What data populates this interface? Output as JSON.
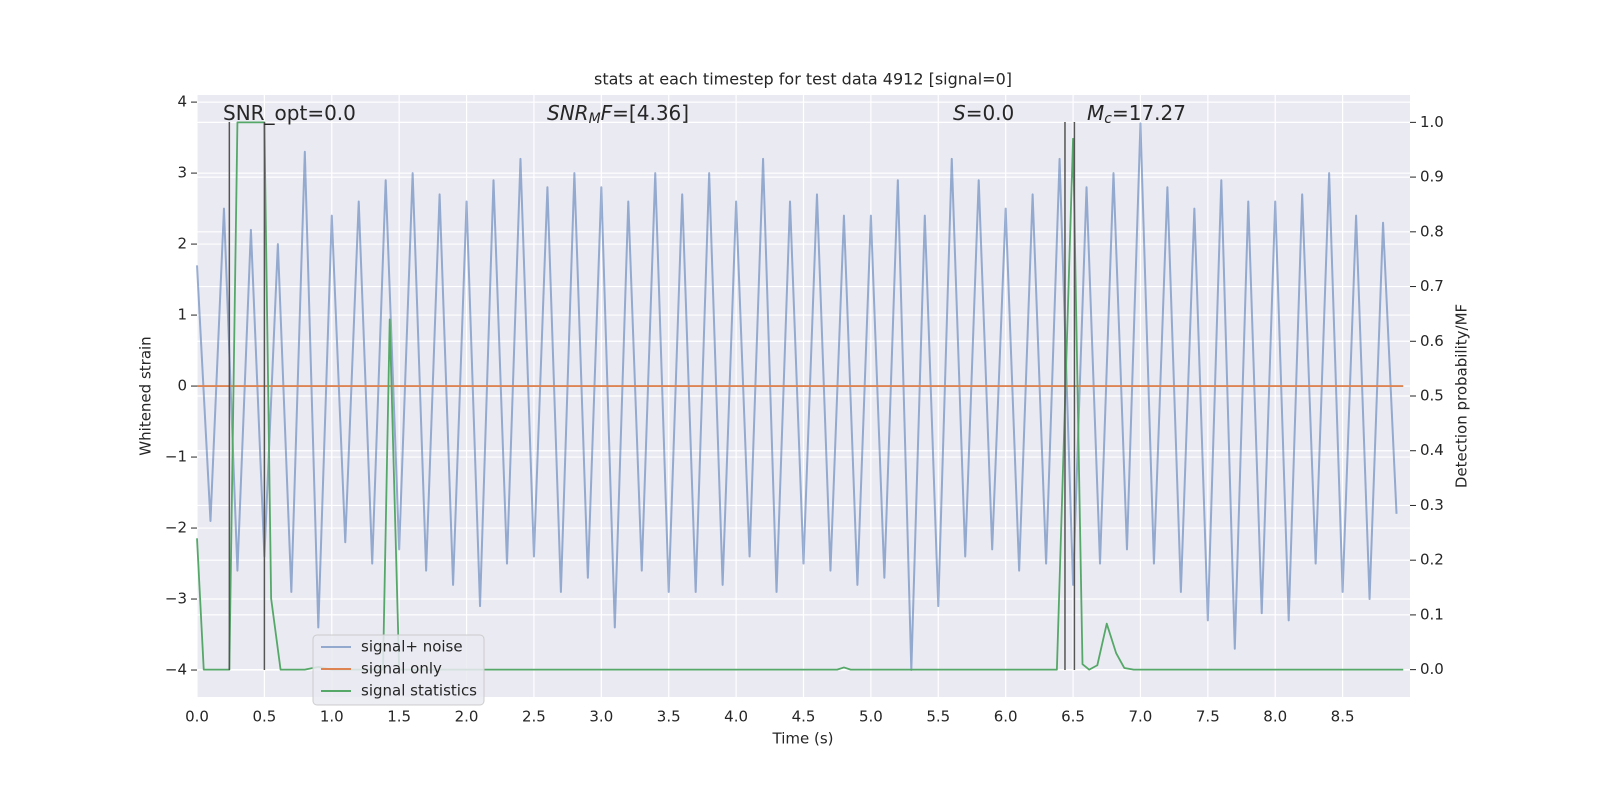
{
  "chart_data": {
    "type": "line",
    "title": "stats at each timestep for test data 4912 [signal=0]",
    "x_label": "Time (s)",
    "y_label": "Whitened strain",
    "y2_label": "Detection probability/MF",
    "xlim": [
      0,
      9.0
    ],
    "ylim": [
      -4.38,
      4.1
    ],
    "y2lim": [
      -0.05,
      1.05
    ],
    "xticks": [
      {
        "value": 0,
        "label": "0.0"
      },
      0.5,
      {
        "value": 1,
        "label": "1.0"
      },
      1.5,
      {
        "value": 2,
        "label": "2.0"
      },
      2.5,
      {
        "value": 3,
        "label": "3.0"
      },
      3.5,
      {
        "value": 4,
        "label": "4.0"
      },
      4.5,
      {
        "value": 5,
        "label": "5.0"
      },
      5.5,
      {
        "value": 6,
        "label": "6.0"
      },
      6.5,
      {
        "value": 7,
        "label": "7.0"
      },
      7.5,
      {
        "value": 8,
        "label": "8.0"
      },
      8.5
    ],
    "yticks": [
      {
        "value": -4,
        "label": "−4"
      },
      {
        "value": -3,
        "label": "−3"
      },
      {
        "value": -2,
        "label": "−2"
      },
      {
        "value": -1,
        "label": "−1"
      },
      0,
      1,
      2,
      3,
      4
    ],
    "y2ticks": [
      {
        "value": 0,
        "label": "0.0"
      },
      0.1,
      0.2,
      0.3,
      0.4,
      0.5,
      0.6,
      0.7,
      0.8,
      0.9,
      {
        "value": 1,
        "label": "1.0"
      }
    ],
    "grid": true,
    "legend": "lower left",
    "series": [
      {
        "name": "signal+ noise",
        "color": "#4c72b0",
        "x": [
          0,
          0.1,
          0.2,
          0.3,
          0.4,
          0.5,
          0.6,
          0.7,
          0.8,
          0.9,
          1,
          1.1,
          1.2,
          1.3,
          1.4,
          1.5,
          1.6,
          1.7,
          1.8,
          1.9,
          2,
          2.1,
          2.2,
          2.3,
          2.4,
          2.5,
          2.6,
          2.7,
          2.8,
          2.9,
          3,
          3.1,
          3.2,
          3.3,
          3.4,
          3.5,
          3.6,
          3.7,
          3.8,
          3.9,
          4,
          4.1,
          4.2,
          4.3,
          4.4,
          4.5,
          4.6,
          4.7,
          4.8,
          4.9,
          5,
          5.1,
          5.2,
          5.3,
          5.4,
          5.5,
          5.6,
          5.7,
          5.8,
          5.9,
          6,
          6.1,
          6.2,
          6.3,
          6.4,
          6.5,
          6.6,
          6.7,
          6.8,
          6.9,
          7,
          7.1,
          7.2,
          7.3,
          7.4,
          7.5,
          7.6,
          7.7,
          7.8,
          7.9,
          8,
          8.1,
          8.2,
          8.3,
          8.4,
          8.5,
          8.6,
          8.7,
          8.8,
          8.9
        ],
        "values": [
          1.7,
          -1.9,
          2.5,
          -2.6,
          2.2,
          -2.4,
          2.0,
          -2.9,
          3.3,
          -3.4,
          2.4,
          -2.2,
          2.6,
          -2.5,
          2.9,
          -2.3,
          3.0,
          -2.6,
          2.7,
          -2.8,
          2.6,
          -3.1,
          2.9,
          -2.5,
          3.2,
          -2.4,
          2.8,
          -2.9,
          3.0,
          -2.7,
          2.8,
          -3.4,
          2.6,
          -2.6,
          3.0,
          -2.9,
          2.7,
          -2.9,
          3.0,
          -2.8,
          2.6,
          -2.4,
          3.2,
          -2.9,
          2.6,
          -2.5,
          2.7,
          -2.6,
          2.4,
          -2.8,
          2.4,
          -2.7,
          2.9,
          -4.0,
          2.4,
          -3.1,
          3.2,
          -2.4,
          2.9,
          -2.3,
          2.5,
          -2.6,
          2.7,
          -2.5,
          3.2,
          -2.8,
          2.8,
          -2.5,
          3.0,
          -2.3,
          3.7,
          -2.5,
          2.8,
          -2.9,
          2.5,
          -3.3,
          2.9,
          -3.7,
          2.6,
          -3.2,
          2.6,
          -3.3,
          2.7,
          -2.5,
          3.0,
          -2.9,
          2.4,
          -3.0,
          2.3,
          -1.8
        ]
      },
      {
        "name": "signal only",
        "color": "#dd8452",
        "x": [
          0,
          8.95
        ],
        "values": [
          0,
          0
        ]
      },
      {
        "name": "signal statistics",
        "color": "#55a868",
        "axis": "y2",
        "x": [
          0,
          0.05,
          0.24,
          0.3,
          0.5,
          0.55,
          0.62,
          0.8,
          0.9,
          1.0,
          1.38,
          1.43,
          1.5,
          1.6,
          4.75,
          4.8,
          4.85,
          6.38,
          6.5,
          6.57,
          6.62,
          6.68,
          6.75,
          6.82,
          6.88,
          6.95,
          8.95
        ],
        "values": [
          0.24,
          0,
          0,
          1.0,
          1.0,
          0.13,
          0,
          0,
          0.005,
          0,
          0,
          0.64,
          0,
          0,
          0,
          0.004,
          0,
          0,
          0.97,
          0.01,
          0,
          0.008,
          0.084,
          0.03,
          0.003,
          0,
          0
        ]
      }
    ],
    "vlines": {
      "x": [
        0.24,
        0.5,
        6.44,
        6.51
      ],
      "ymin": -4,
      "ymax": 3.72,
      "color": "#555555"
    },
    "annotations": [
      [
        {
          "text": "SNR_opt=0.0"
        }
      ],
      [
        {
          "text": "SNR",
          "italic": true
        },
        {
          "text": "M",
          "italic": true,
          "sub": true
        },
        {
          "text": "F",
          "italic": true
        },
        {
          "text": "=[4.36]"
        }
      ],
      [
        {
          "text": "S",
          "italic": true
        },
        {
          "text": "=0.0"
        }
      ],
      [
        {
          "text": "M",
          "italic": true
        },
        {
          "text": "c",
          "italic": true,
          "sub": true
        },
        {
          "text": "=17.27"
        }
      ]
    ]
  }
}
